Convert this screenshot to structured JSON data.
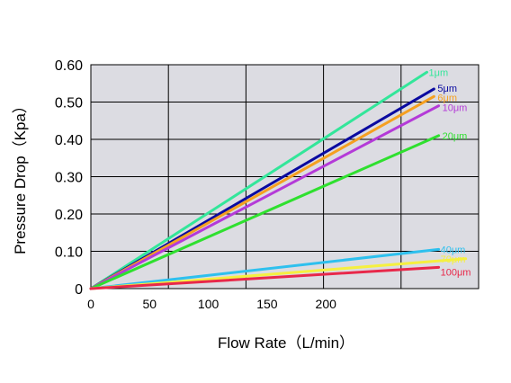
{
  "chart_data": {
    "type": "line",
    "xlabel": "Flow Rate（L/min）",
    "ylabel": "Pressure Drop（Kpa）",
    "xlim": [
      0,
      330
    ],
    "ylim": [
      0,
      0.6
    ],
    "x_ticks": [
      "0",
      "50",
      "100",
      "150",
      "200"
    ],
    "y_ticks": [
      "0",
      "0.10",
      "0.20",
      "0.30",
      "0.40",
      "0.50",
      "0.60"
    ],
    "grid": true,
    "plot_background": "#dcdce2",
    "series": [
      {
        "name": "1μm",
        "color": "#33e69a",
        "x": [
          0,
          286
        ],
        "y": [
          0,
          0.58
        ]
      },
      {
        "name": "5μm",
        "color": "#0a0aa0",
        "x": [
          0,
          292
        ],
        "y": [
          0,
          0.535
        ]
      },
      {
        "name": "6μm",
        "color": "#f5a020",
        "x": [
          0,
          292
        ],
        "y": [
          0,
          0.515
        ]
      },
      {
        "name": "10μm",
        "color": "#b43ad8",
        "x": [
          0,
          296
        ],
        "y": [
          0,
          0.49
        ]
      },
      {
        "name": "20μm",
        "color": "#2fe02f",
        "x": [
          0,
          296
        ],
        "y": [
          0,
          0.41
        ]
      },
      {
        "name": "40μm",
        "color": "#2ec0ee",
        "x": [
          0,
          296
        ],
        "y": [
          0,
          0.105
        ]
      },
      {
        "name": "70μm",
        "color": "#f5f040",
        "x": [
          0,
          319
        ],
        "y": [
          0,
          0.08
        ]
      },
      {
        "name": "100μm",
        "color": "#e8284a",
        "x": [
          0,
          296
        ],
        "y": [
          0,
          0.057
        ]
      }
    ]
  }
}
